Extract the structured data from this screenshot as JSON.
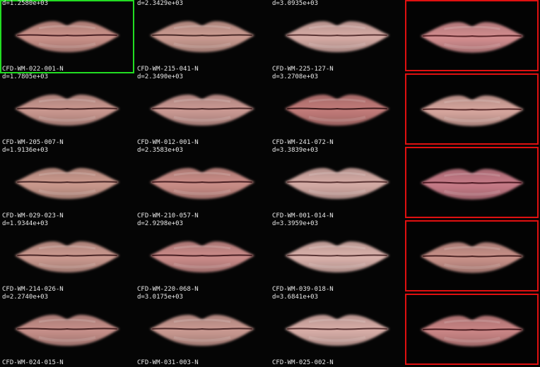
{
  "grid": [
    {
      "distance": "d=1.2580e+03",
      "name": "CFD-WM-022-001-N",
      "lip_color": "#c89088",
      "line_color": "#4a2024",
      "selected": true
    },
    {
      "distance": "d=2.3429e+03",
      "name": "CFD-WM-215-041-N",
      "lip_color": "#c99a90",
      "line_color": "#4a2a28"
    },
    {
      "distance": "d=3.0935e+03",
      "name": "CFD-WM-225-127-N",
      "lip_color": "#d4aaa4",
      "line_color": "#5a3434"
    },
    {
      "distance": "d=1.7805e+03",
      "name": "CFD-WM-205-007-N",
      "lip_color": "#c8968e",
      "line_color": "#4a2626"
    },
    {
      "distance": "d=2.3490e+03",
      "name": "CFD-WM-012-001-N",
      "lip_color": "#c99892",
      "line_color": "#4e2a2a"
    },
    {
      "distance": "d=3.2708e+03",
      "name": "CFD-WM-241-072-N",
      "lip_color": "#c07a78",
      "line_color": "#3e1a1c"
    },
    {
      "distance": "d=1.9136e+03",
      "name": "CFD-WM-029-023-N",
      "lip_color": "#c9988c",
      "line_color": "#4a2828"
    },
    {
      "distance": "d=2.3583e+03",
      "name": "CFD-WM-210-057-N",
      "lip_color": "#c88c86",
      "line_color": "#4a2024"
    },
    {
      "distance": "d=3.3839e+03",
      "name": "CFD-WM-001-014-N",
      "lip_color": "#d3aaa4",
      "line_color": "#5a3434"
    },
    {
      "distance": "d=1.9344e+03",
      "name": "CFD-WM-214-026-N",
      "lip_color": "#c9988e",
      "line_color": "#4a2626"
    },
    {
      "distance": "d=2.9298e+03",
      "name": "CFD-WM-220-068-N",
      "lip_color": "#c88a88",
      "line_color": "#4a2024"
    },
    {
      "distance": "d=3.3959e+03",
      "name": "CFD-WM-039-018-N",
      "lip_color": "#d8b0aa",
      "line_color": "#5a3636"
    },
    {
      "distance": "d=2.2740e+03",
      "name": "CFD-WM-024-015-N",
      "lip_color": "#c48e88",
      "line_color": "#4a2424"
    },
    {
      "distance": "d=3.0175e+03",
      "name": "CFD-WM-031-003-N",
      "lip_color": "#c89890",
      "line_color": "#4e2a2a"
    },
    {
      "distance": "d=3.6841e+03",
      "name": "CFD-WM-025-002-N",
      "lip_color": "#d6aca6",
      "line_color": "#5a3434"
    }
  ],
  "references": [
    {
      "lip_color": "#d08c8e",
      "line_color": "#5a2428"
    },
    {
      "lip_color": "#d4a49c",
      "line_color": "#5a2c2c"
    },
    {
      "lip_color": "#c47a86",
      "line_color": "#4e1a24"
    },
    {
      "lip_color": "#c69088",
      "line_color": "#4a2222"
    },
    {
      "lip_color": "#c88484",
      "line_color": "#4a1c20"
    }
  ],
  "colors": {
    "background": "#050505",
    "text": "#e8e8e8",
    "selection": "#22dd22",
    "reference_border": "#e01010"
  }
}
